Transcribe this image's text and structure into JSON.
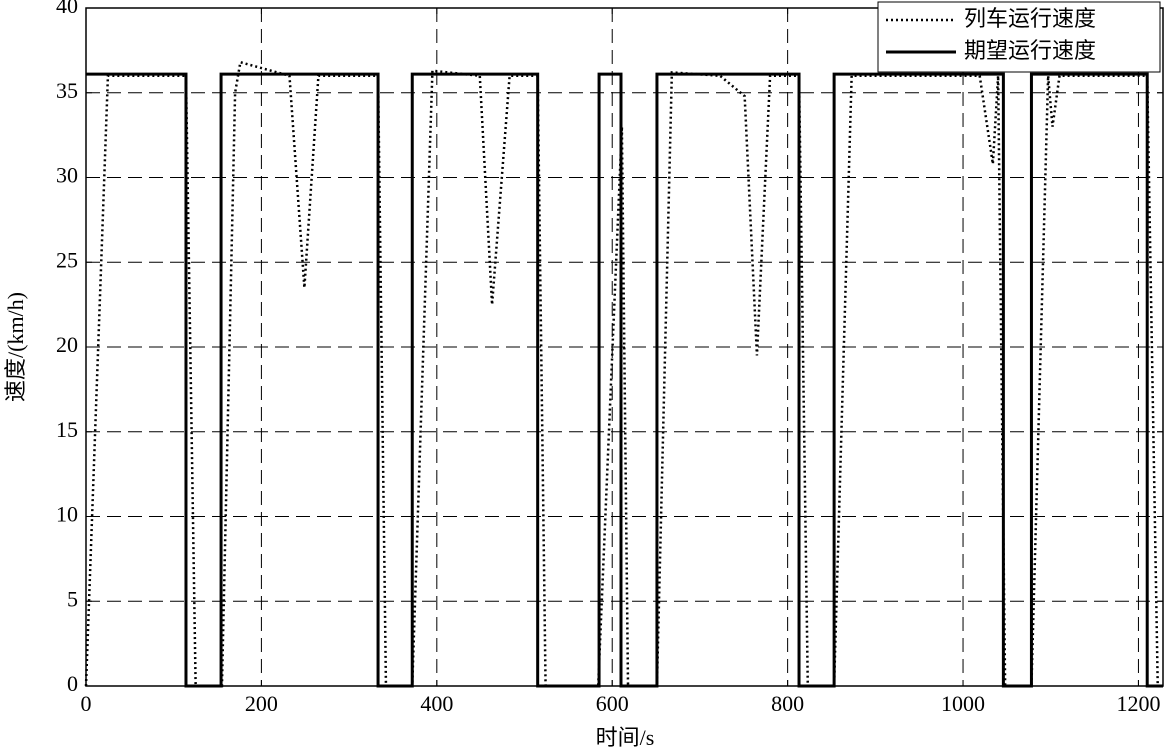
{
  "chart_data": {
    "type": "line",
    "xlabel": "时间/s",
    "ylabel": "速度/(km/h)",
    "xlim": [
      0,
      1228
    ],
    "ylim": [
      0,
      40
    ],
    "xticks": [
      0,
      200,
      400,
      600,
      800,
      1000,
      1200
    ],
    "yticks": [
      0,
      5,
      10,
      15,
      20,
      25,
      30,
      35,
      40
    ],
    "grid": true,
    "legend": "upper right",
    "series": [
      {
        "name": "列车运行速度",
        "color": "#000000",
        "style": "dotted",
        "x": [
          0,
          25,
          114,
          125,
          155,
          170,
          176,
          232,
          249,
          265,
          333,
          342,
          372,
          395,
          449,
          463,
          483,
          515,
          524,
          584,
          611,
          618,
          651,
          668,
          723,
          751,
          765,
          780,
          813,
          823,
          853,
          873,
          1019,
          1034,
          1040,
          1048,
          1078,
          1097,
          1102,
          1110,
          1210,
          1222
        ],
        "values": [
          0,
          36,
          36,
          0,
          0,
          35,
          36.8,
          36,
          23.5,
          36,
          36,
          0,
          0,
          36.3,
          36,
          22.5,
          36,
          36,
          0,
          0,
          33,
          0,
          0,
          36.2,
          36,
          34.8,
          19.5,
          36,
          36,
          0,
          0,
          36,
          36,
          30.8,
          36,
          0,
          0,
          36,
          33,
          36,
          36,
          0
        ]
      },
      {
        "name": "期望运行速度",
        "color": "#000000",
        "style": "solid",
        "x": [
          0,
          114,
          114,
          154,
          154,
          333,
          333,
          372,
          372,
          515,
          515,
          585,
          585,
          610,
          610,
          651,
          651,
          813,
          813,
          853,
          853,
          1046,
          1046,
          1078,
          1078,
          1210,
          1210,
          1228
        ],
        "values": [
          36.1,
          36.1,
          0,
          0,
          36.1,
          36.1,
          0,
          0,
          36.1,
          36.1,
          0,
          0,
          36.1,
          36.1,
          0,
          0,
          36.1,
          36.1,
          0,
          0,
          36.1,
          36.1,
          0,
          0,
          36.1,
          36.1,
          0,
          0
        ]
      }
    ]
  }
}
